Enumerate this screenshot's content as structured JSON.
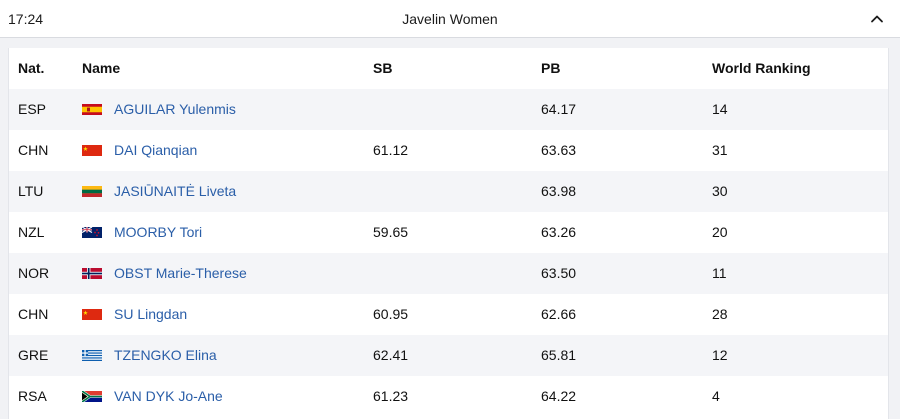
{
  "header": {
    "time": "17:24",
    "title": "Javelin Women"
  },
  "table": {
    "columns": {
      "nat": "Nat.",
      "name": "Name",
      "sb": "SB",
      "pb": "PB",
      "rank": "World Ranking"
    },
    "rows": [
      {
        "nat": "ESP",
        "flag": "spain-flag-icon",
        "name": "AGUILAR Yulenmis",
        "sb": "",
        "pb": "64.17",
        "rank": "14"
      },
      {
        "nat": "CHN",
        "flag": "china-flag-icon",
        "name": "DAI Qianqian",
        "sb": "61.12",
        "pb": "63.63",
        "rank": "31"
      },
      {
        "nat": "LTU",
        "flag": "lithuania-flag-icon",
        "name": "JASIŪNAITĖ Liveta",
        "sb": "",
        "pb": "63.98",
        "rank": "30"
      },
      {
        "nat": "NZL",
        "flag": "new-zealand-flag-icon",
        "name": "MOORBY Tori",
        "sb": "59.65",
        "pb": "63.26",
        "rank": "20"
      },
      {
        "nat": "NOR",
        "flag": "norway-flag-icon",
        "name": "OBST Marie-Therese",
        "sb": "",
        "pb": "63.50",
        "rank": "11"
      },
      {
        "nat": "CHN",
        "flag": "china-flag-icon",
        "name": "SU Lingdan",
        "sb": "60.95",
        "pb": "62.66",
        "rank": "28"
      },
      {
        "nat": "GRE",
        "flag": "greece-flag-icon",
        "name": "TZENGKO Elina",
        "sb": "62.41",
        "pb": "65.81",
        "rank": "12"
      },
      {
        "nat": "RSA",
        "flag": "south-africa-flag-icon",
        "name": "VAN DYK Jo-Ane",
        "sb": "61.23",
        "pb": "64.22",
        "rank": "4"
      }
    ]
  },
  "colors": {
    "link": "#2a5ea8",
    "row_alt": "#f4f5f8",
    "panel_bg": "#f1f2f5"
  }
}
